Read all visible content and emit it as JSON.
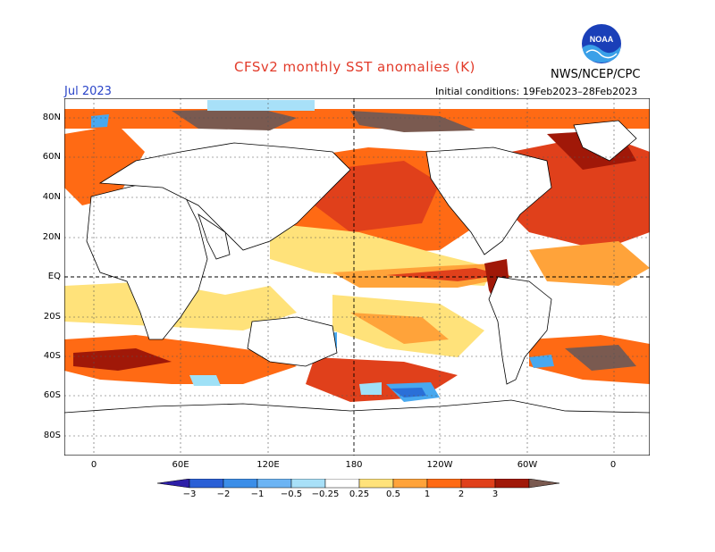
{
  "header": {
    "title": "CFSv2 monthly SST anomalies (K)",
    "organization": "NWS/NCEP/CPC",
    "month": "Jul 2023",
    "initial_conditions": "Initial conditions: 19Feb2023–28Feb2023"
  },
  "map": {
    "lat_labels": [
      "80N",
      "60N",
      "40N",
      "20N",
      "EQ",
      "20S",
      "40S",
      "60S",
      "80S"
    ],
    "lon_labels": [
      "0",
      "60E",
      "120E",
      "180",
      "120W",
      "60W",
      "0"
    ],
    "colors": {
      "strong_positive": "#e0401b",
      "positive": "#ff6a14",
      "weak_positive": "#ffa33a",
      "slight_positive": "#ffe27a",
      "very_strong": "#a01808",
      "extreme": "#7a5a50",
      "negative_weak": "#9fe1f7",
      "negative": "#48a8ef",
      "negative_strong": "#2a6fd8",
      "land": "#ffffff"
    }
  },
  "colorbar": {
    "labels": [
      "−3",
      "−2",
      "−1",
      "−0.5",
      "−0.25",
      "0.25",
      "0.5",
      "1",
      "2",
      "3"
    ],
    "colors": [
      "#2d1fa8",
      "#2a5fd6",
      "#3c8ee8",
      "#6cb4f4",
      "#a8e0f8",
      "#ffffff",
      "#ffe27a",
      "#ffa33a",
      "#ff6a14",
      "#e0401b",
      "#a01808",
      "#7a5a50"
    ]
  }
}
